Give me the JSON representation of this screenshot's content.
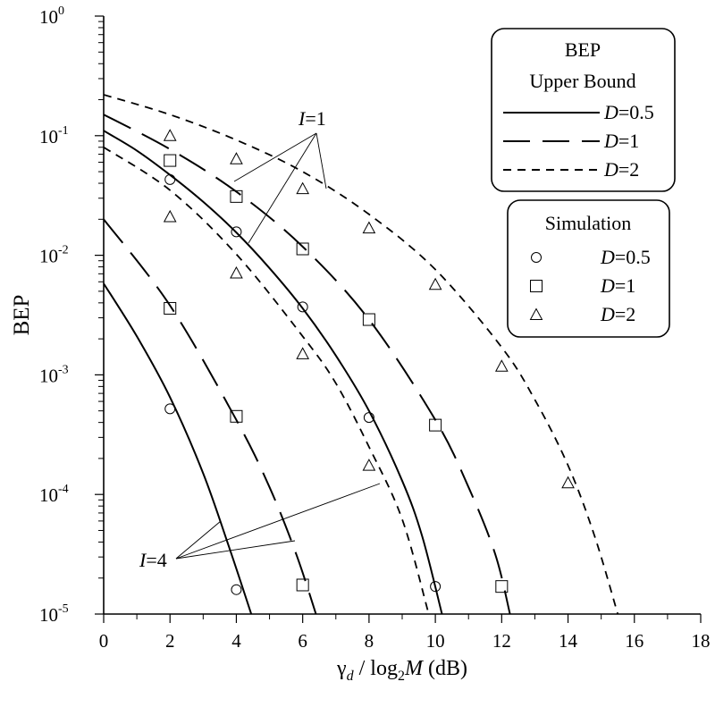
{
  "chart_data": {
    "type": "line",
    "title": "",
    "xlabel_parts": {
      "gamma": "γ",
      "sub_d": "d",
      "slash_log": " / log",
      "sub_2": "2",
      "M": "M",
      "unit": " (dB)"
    },
    "ylabel": "BEP",
    "xlim": [
      0,
      18
    ],
    "ylim": [
      1e-05,
      1
    ],
    "yscale": "log",
    "x_ticks": [
      "0",
      "2",
      "4",
      "6",
      "8",
      "10",
      "12",
      "14",
      "16",
      "18"
    ],
    "y_ticks": [
      {
        "base": "10",
        "exp": "0"
      },
      {
        "base": "10",
        "exp": "-1"
      },
      {
        "base": "10",
        "exp": "-2"
      },
      {
        "base": "10",
        "exp": "-3"
      },
      {
        "base": "10",
        "exp": "-4"
      },
      {
        "base": "10",
        "exp": "-5"
      }
    ],
    "legend_upper": {
      "title_line1": "BEP",
      "title_line2": "Upper Bound",
      "entries": [
        {
          "var": "D",
          "label": "=0.5",
          "style": "solid"
        },
        {
          "var": "D",
          "label": "=1",
          "style": "long-dash"
        },
        {
          "var": "D",
          "label": "=2",
          "style": "short-dash"
        }
      ]
    },
    "legend_sim": {
      "title": "Simulation",
      "entries": [
        {
          "var": "D",
          "label": "=0.5",
          "marker": "circle"
        },
        {
          "var": "D",
          "label": "=1",
          "marker": "square"
        },
        {
          "var": "D",
          "label": "=2",
          "marker": "triangle"
        }
      ]
    },
    "annotations": [
      {
        "var": "I",
        "text": "=1"
      },
      {
        "var": "I",
        "text": "=4"
      }
    ],
    "series": [
      {
        "group": "I=1",
        "D": "0.5",
        "style": "solid",
        "points": [
          [
            0,
            0.11
          ],
          [
            1,
            0.075
          ],
          [
            2,
            0.047
          ],
          [
            3,
            0.028
          ],
          [
            4,
            0.0155
          ],
          [
            5,
            0.0078
          ],
          [
            6,
            0.0036
          ],
          [
            7,
            0.00145
          ],
          [
            8,
            0.0005
          ],
          [
            9,
            0.00013
          ],
          [
            9.6,
            4.5e-05
          ],
          [
            10.2,
            1e-05
          ]
        ]
      },
      {
        "group": "I=1",
        "D": "1",
        "style": "long-dash",
        "points": [
          [
            0,
            0.15
          ],
          [
            2,
            0.077
          ],
          [
            4,
            0.034
          ],
          [
            6,
            0.0118
          ],
          [
            8,
            0.0029
          ],
          [
            10,
            0.00042
          ],
          [
            11,
            0.000115
          ],
          [
            11.8,
            3.2e-05
          ],
          [
            12.25,
            1e-05
          ]
        ]
      },
      {
        "group": "I=1",
        "D": "2",
        "style": "short-dash",
        "points": [
          [
            0,
            0.22
          ],
          [
            2,
            0.15
          ],
          [
            4,
            0.092
          ],
          [
            6,
            0.05
          ],
          [
            8,
            0.022
          ],
          [
            10,
            0.0076
          ],
          [
            12,
            0.0017
          ],
          [
            13,
            0.00062
          ],
          [
            14,
            0.000175
          ],
          [
            14.8,
            4.5e-05
          ],
          [
            15.5,
            1e-05
          ]
        ]
      },
      {
        "group": "I=4",
        "D": "0.5",
        "style": "solid",
        "points": [
          [
            0,
            0.0058
          ],
          [
            1,
            0.0021
          ],
          [
            2,
            0.00065
          ],
          [
            3,
            0.00015
          ],
          [
            3.8,
            3.5e-05
          ],
          [
            4.45,
            1e-05
          ]
        ]
      },
      {
        "group": "I=4",
        "D": "1",
        "style": "long-dash",
        "points": [
          [
            0,
            0.02
          ],
          [
            2,
            0.0038
          ],
          [
            4,
            0.00042
          ],
          [
            5,
            0.000115
          ],
          [
            5.8,
            3.2e-05
          ],
          [
            6.4,
            1e-05
          ]
        ]
      },
      {
        "group": "I=4",
        "D": "2",
        "style": "short-dash",
        "points": [
          [
            0,
            0.08
          ],
          [
            2,
            0.035
          ],
          [
            4,
            0.0102
          ],
          [
            6,
            0.0021
          ],
          [
            7,
            0.00085
          ],
          [
            8,
            0.00025
          ],
          [
            9,
            6.2e-05
          ],
          [
            9.8,
            1e-05
          ]
        ]
      }
    ],
    "markers": [
      {
        "marker": "circle",
        "points": [
          [
            2,
            0.043
          ],
          [
            4,
            0.0157
          ],
          [
            6,
            0.0037
          ],
          [
            8,
            0.00044
          ],
          [
            10,
            1.7e-05
          ],
          [
            2,
            0.00052
          ],
          [
            4,
            1.6e-05
          ]
        ]
      },
      {
        "marker": "square",
        "points": [
          [
            2,
            0.062
          ],
          [
            4,
            0.031
          ],
          [
            6,
            0.0113
          ],
          [
            8,
            0.0029
          ],
          [
            10,
            0.00038
          ],
          [
            12,
            1.7e-05
          ],
          [
            2,
            0.0036
          ],
          [
            4,
            0.00045
          ],
          [
            6,
            1.75e-05
          ]
        ]
      },
      {
        "marker": "triangle",
        "points": [
          [
            2,
            0.1
          ],
          [
            4,
            0.064
          ],
          [
            6,
            0.036
          ],
          [
            8,
            0.0169
          ],
          [
            10,
            0.0057
          ],
          [
            12,
            0.00118
          ],
          [
            14,
            0.000125
          ],
          [
            2,
            0.021
          ],
          [
            4,
            0.0071
          ],
          [
            6,
            0.0015
          ],
          [
            8,
            0.000175
          ]
        ]
      }
    ]
  }
}
